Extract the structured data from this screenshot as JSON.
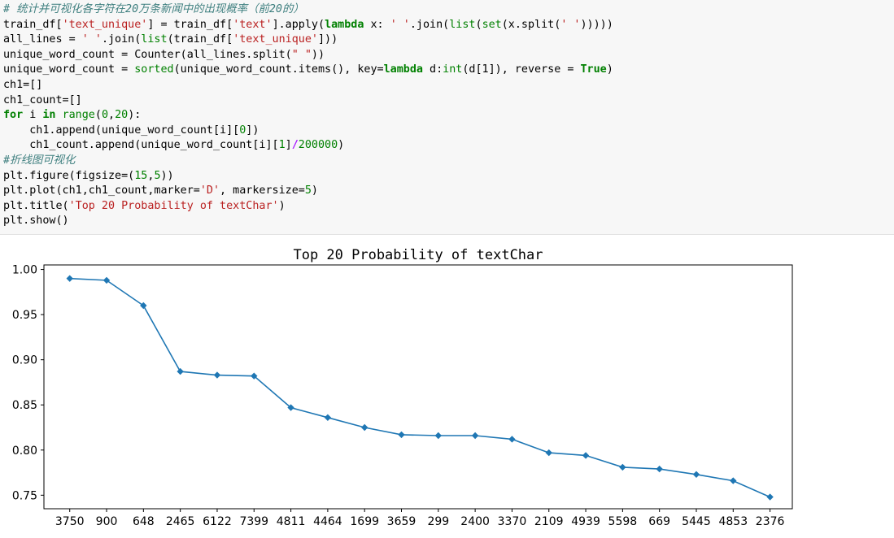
{
  "notebook": {
    "code_lines": [
      [
        {
          "t": "comment",
          "v": "# 统计并可视化各字符在20万条新闻中的出现概率（前20的）"
        }
      ],
      [
        {
          "t": "plain",
          "v": "train_df["
        },
        {
          "t": "str",
          "v": "'text_unique'"
        },
        {
          "t": "plain",
          "v": "] = train_df["
        },
        {
          "t": "str",
          "v": "'text'"
        },
        {
          "t": "plain",
          "v": "].apply("
        },
        {
          "t": "kw",
          "v": "lambda"
        },
        {
          "t": "plain",
          "v": " x: "
        },
        {
          "t": "str",
          "v": "' '"
        },
        {
          "t": "plain",
          "v": ".join("
        },
        {
          "t": "builtin",
          "v": "list"
        },
        {
          "t": "plain",
          "v": "("
        },
        {
          "t": "builtin",
          "v": "set"
        },
        {
          "t": "plain",
          "v": "(x.split("
        },
        {
          "t": "str",
          "v": "' '"
        },
        {
          "t": "plain",
          "v": ")))))"
        }
      ],
      [
        {
          "t": "plain",
          "v": "all_lines = "
        },
        {
          "t": "str",
          "v": "' '"
        },
        {
          "t": "plain",
          "v": ".join("
        },
        {
          "t": "builtin",
          "v": "list"
        },
        {
          "t": "plain",
          "v": "(train_df["
        },
        {
          "t": "str",
          "v": "'text_unique'"
        },
        {
          "t": "plain",
          "v": "]))"
        }
      ],
      [
        {
          "t": "plain",
          "v": "unique_word_count = Counter(all_lines.split("
        },
        {
          "t": "str",
          "v": "\" \""
        },
        {
          "t": "plain",
          "v": "))"
        }
      ],
      [
        {
          "t": "plain",
          "v": "unique_word_count = "
        },
        {
          "t": "builtin",
          "v": "sorted"
        },
        {
          "t": "plain",
          "v": "(unique_word_count.items(), key="
        },
        {
          "t": "kw",
          "v": "lambda"
        },
        {
          "t": "plain",
          "v": " d:"
        },
        {
          "t": "builtin",
          "v": "int"
        },
        {
          "t": "plain",
          "v": "(d[1]), reverse = "
        },
        {
          "t": "true",
          "v": "True"
        },
        {
          "t": "plain",
          "v": ")"
        }
      ],
      [
        {
          "t": "plain",
          "v": "ch1=[]"
        }
      ],
      [
        {
          "t": "plain",
          "v": "ch1_count=[]"
        }
      ],
      [
        {
          "t": "kw",
          "v": "for"
        },
        {
          "t": "plain",
          "v": " i "
        },
        {
          "t": "kw",
          "v": "in"
        },
        {
          "t": "plain",
          "v": " "
        },
        {
          "t": "builtin",
          "v": "range"
        },
        {
          "t": "plain",
          "v": "("
        },
        {
          "t": "num",
          "v": "0"
        },
        {
          "t": "plain",
          "v": ","
        },
        {
          "t": "num",
          "v": "20"
        },
        {
          "t": "plain",
          "v": "):"
        }
      ],
      [
        {
          "t": "plain",
          "v": "    ch1.append(unique_word_count[i]["
        },
        {
          "t": "num",
          "v": "0"
        },
        {
          "t": "plain",
          "v": "])"
        }
      ],
      [
        {
          "t": "plain",
          "v": "    ch1_count.append(unique_word_count[i]["
        },
        {
          "t": "num",
          "v": "1"
        },
        {
          "t": "plain",
          "v": "]"
        },
        {
          "t": "op",
          "v": "/"
        },
        {
          "t": "num",
          "v": "200000"
        },
        {
          "t": "plain",
          "v": ")"
        }
      ],
      [
        {
          "t": "comment",
          "v": "#折线图可视化"
        }
      ],
      [
        {
          "t": "plain",
          "v": "plt.figure(figsize=("
        },
        {
          "t": "num",
          "v": "15"
        },
        {
          "t": "plain",
          "v": ","
        },
        {
          "t": "num",
          "v": "5"
        },
        {
          "t": "plain",
          "v": "))"
        }
      ],
      [
        {
          "t": "plain",
          "v": "plt.plot(ch1,ch1_count,marker="
        },
        {
          "t": "str",
          "v": "'D'"
        },
        {
          "t": "plain",
          "v": ", markersize="
        },
        {
          "t": "num",
          "v": "5"
        },
        {
          "t": "plain",
          "v": ")"
        }
      ],
      [
        {
          "t": "plain",
          "v": "plt.title("
        },
        {
          "t": "str",
          "v": "'Top 20 Probability of textChar'"
        },
        {
          "t": "plain",
          "v": ")"
        }
      ],
      [
        {
          "t": "plain",
          "v": "plt.show()"
        }
      ]
    ]
  },
  "chart_data": {
    "type": "line",
    "title": "Top 20 Probability of textChar",
    "xlabel": "",
    "ylabel": "",
    "categories": [
      "3750",
      "900",
      "648",
      "2465",
      "6122",
      "7399",
      "4811",
      "4464",
      "1699",
      "3659",
      "299",
      "2400",
      "3370",
      "2109",
      "4939",
      "5598",
      "669",
      "5445",
      "4853",
      "2376"
    ],
    "values": [
      0.99,
      0.988,
      0.96,
      0.887,
      0.883,
      0.882,
      0.847,
      0.836,
      0.825,
      0.817,
      0.816,
      0.816,
      0.812,
      0.797,
      0.794,
      0.781,
      0.779,
      0.773,
      0.766,
      0.748
    ],
    "ylim": [
      0.735,
      1.005
    ],
    "yticks": [
      0.75,
      0.8,
      0.85,
      0.9,
      0.95,
      1.0
    ],
    "ytick_labels": [
      "0.75",
      "0.80",
      "0.85",
      "0.90",
      "0.95",
      "1.00"
    ],
    "marker": "diamond",
    "grid": false,
    "color": "#1f77b4"
  }
}
